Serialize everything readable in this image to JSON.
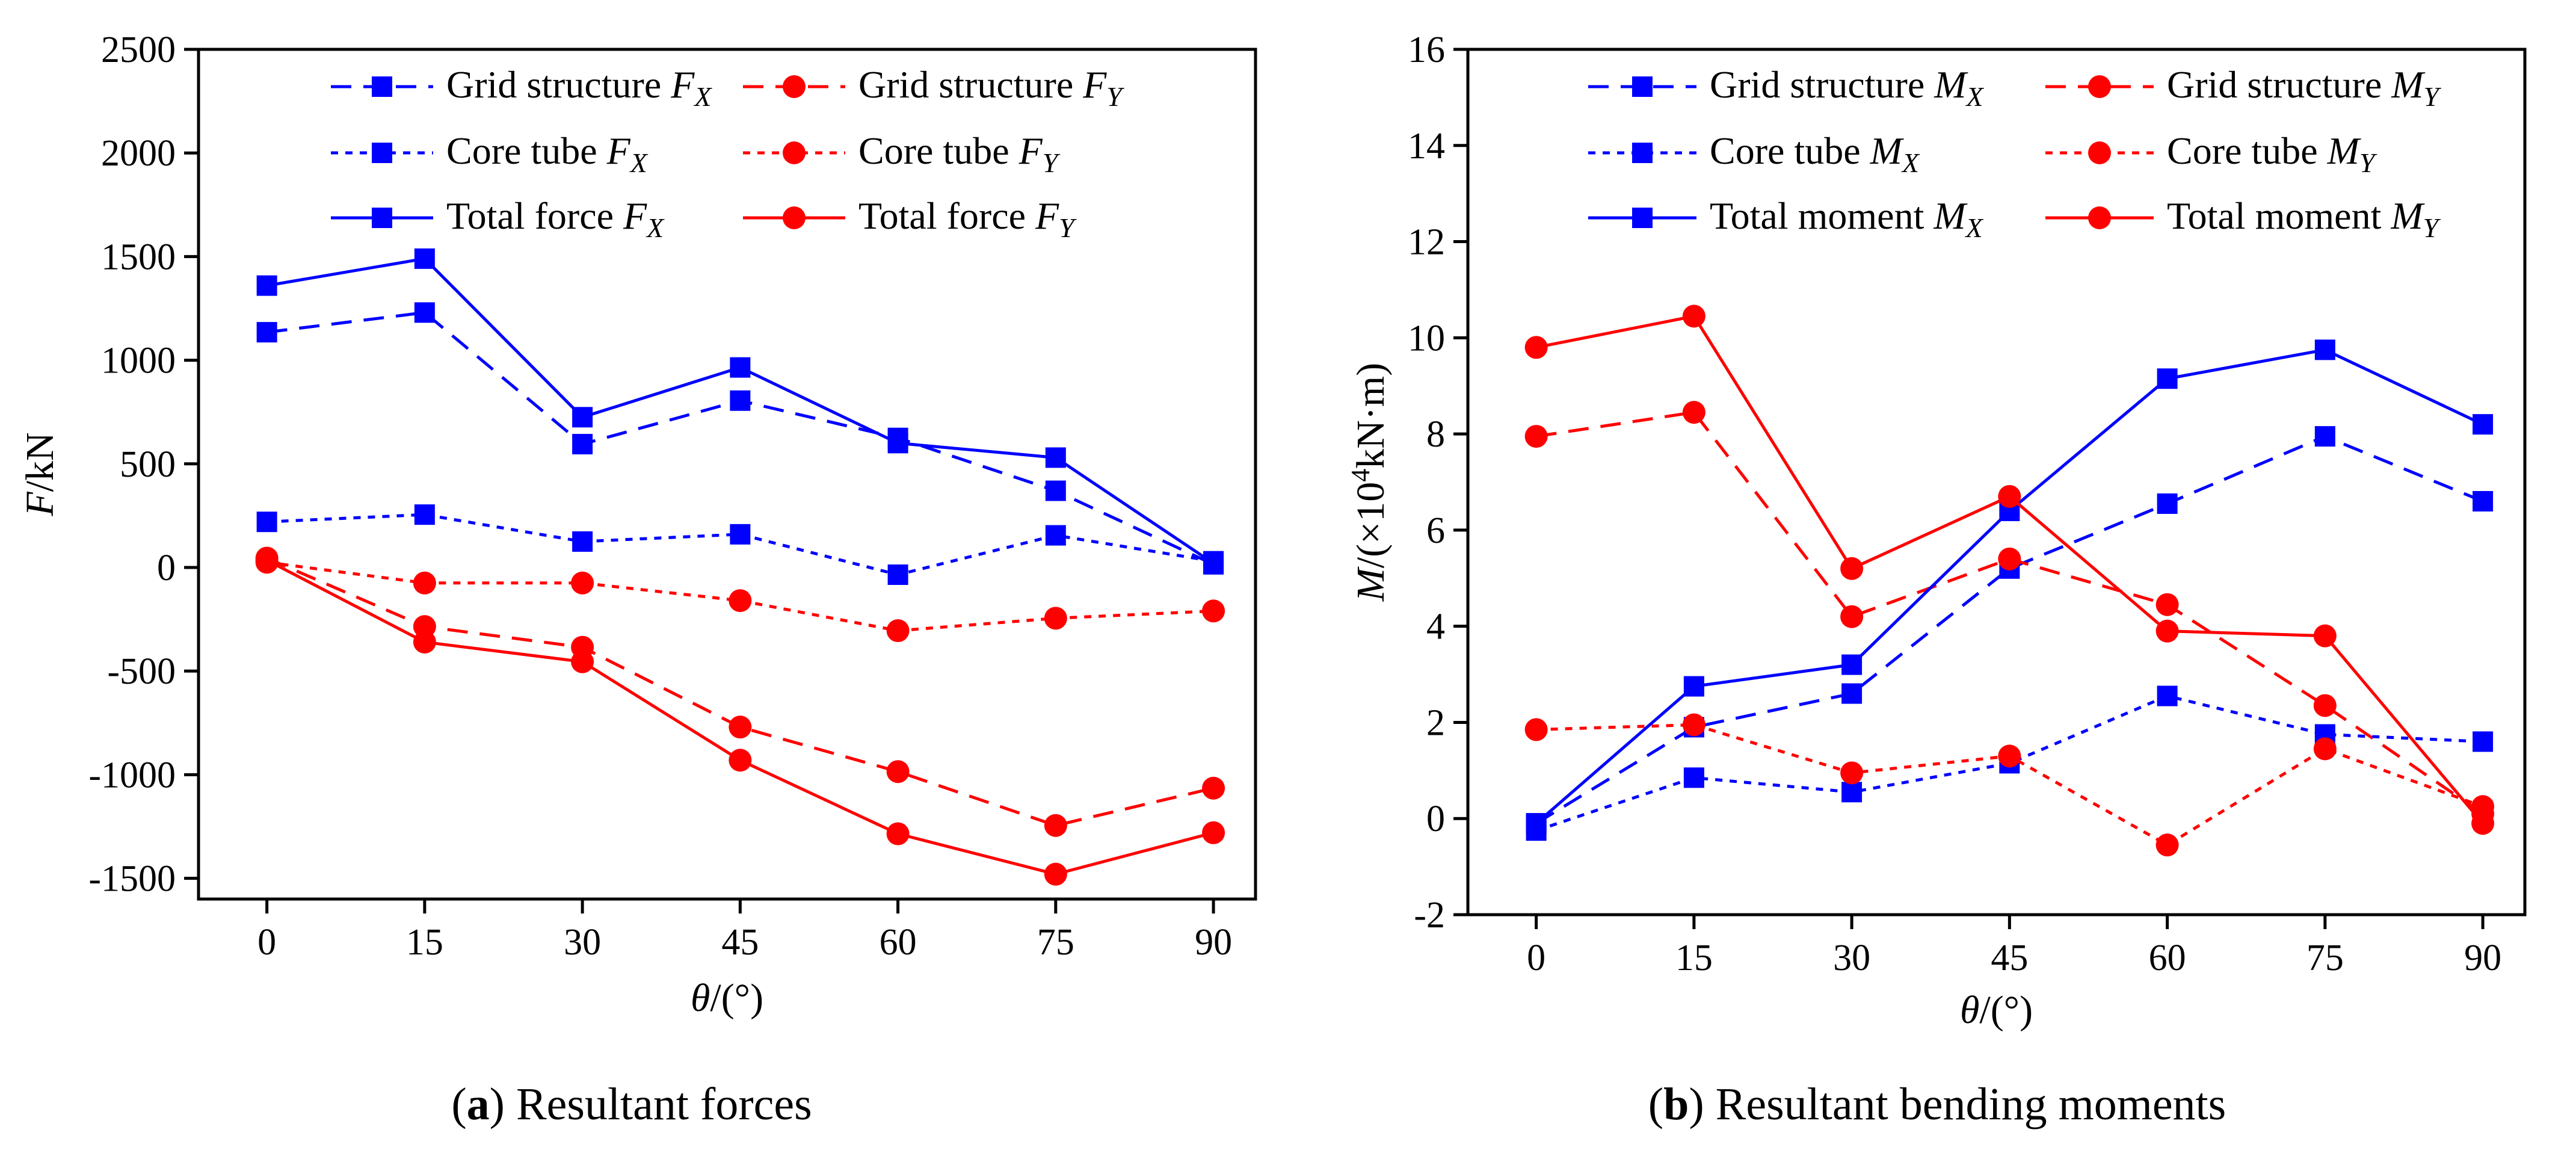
{
  "colors": {
    "blue": "#0000ff",
    "red": "#ff0000",
    "axis": "#000000"
  },
  "captions": [
    {
      "letter": "a",
      "text": " Resultant forces"
    },
    {
      "letter": "b",
      "text": " Resultant bending moments"
    }
  ],
  "chart_data": [
    {
      "type": "line",
      "xlabel": {
        "var": "θ",
        "unit": "/(°)"
      },
      "ylabel": {
        "var": "F",
        "unit": "/kN"
      },
      "x": [
        0,
        15,
        30,
        45,
        60,
        75,
        90
      ],
      "xticks": [
        "0",
        "15",
        "30",
        "45",
        "60",
        "75",
        "90"
      ],
      "yticks": [
        "-1500",
        "-1000",
        "-500",
        "0",
        "500",
        "1000",
        "1500",
        "2000",
        "2500"
      ],
      "xlim": [
        -6.5,
        94
      ],
      "ylim": [
        -1600,
        2500
      ],
      "grid": false,
      "legend_position": "top",
      "series": [
        {
          "name": "Grid structure ",
          "sub": "X",
          "var": "F",
          "color": "#0000ff",
          "dash": "dashed",
          "marker": "square",
          "values": [
            1135,
            1230,
            595,
            805,
            625,
            370,
            15
          ]
        },
        {
          "name": "Grid structure ",
          "sub": "Y",
          "var": "F",
          "color": "#ff0000",
          "dash": "dashed",
          "marker": "circle",
          "values": [
            45,
            -285,
            -385,
            -770,
            -985,
            -1245,
            -1065
          ]
        },
        {
          "name": "Core tube ",
          "sub": "X",
          "var": "F",
          "color": "#0000ff",
          "dash": "dotted",
          "marker": "square",
          "values": [
            220,
            255,
            125,
            160,
            -35,
            155,
            30
          ]
        },
        {
          "name": "Core tube ",
          "sub": "Y",
          "var": "F",
          "color": "#ff0000",
          "dash": "dotted",
          "marker": "circle",
          "values": [
            25,
            -75,
            -75,
            -160,
            -305,
            -245,
            -210
          ]
        },
        {
          "name": "Total force ",
          "sub": "X",
          "var": "F",
          "color": "#0000ff",
          "dash": "solid",
          "marker": "square",
          "values": [
            1360,
            1490,
            725,
            965,
            600,
            530,
            20
          ]
        },
        {
          "name": "Total force ",
          "sub": "Y",
          "var": "F",
          "color": "#ff0000",
          "dash": "solid",
          "marker": "circle",
          "values": [
            35,
            -360,
            -455,
            -930,
            -1285,
            -1480,
            -1280
          ]
        }
      ]
    },
    {
      "type": "line",
      "xlabel": {
        "var": "θ",
        "unit": "/(°)"
      },
      "ylabel": {
        "var": "M",
        "unit_pre": "/(×10",
        "sup": "4",
        "unit_post": "kN·m)"
      },
      "x": [
        0,
        15,
        30,
        45,
        60,
        75,
        90
      ],
      "xticks": [
        "0",
        "15",
        "30",
        "45",
        "60",
        "75",
        "90"
      ],
      "yticks": [
        "-2",
        "0",
        "2",
        "4",
        "6",
        "8",
        "10",
        "12",
        "14",
        "16"
      ],
      "xlim": [
        -6.5,
        94
      ],
      "ylim": [
        -2,
        16
      ],
      "grid": false,
      "legend_position": "top",
      "series": [
        {
          "name": "Grid structure ",
          "sub": "X",
          "var": "M",
          "color": "#0000ff",
          "dash": "dashed",
          "marker": "square",
          "values": [
            -0.1,
            1.9,
            2.6,
            5.2,
            6.55,
            7.95,
            6.6
          ]
        },
        {
          "name": "Grid structure ",
          "sub": "Y",
          "var": "M",
          "color": "#ff0000",
          "dash": "dashed",
          "marker": "circle",
          "values": [
            7.95,
            8.45,
            4.2,
            5.4,
            4.45,
            2.35,
            0.1
          ]
        },
        {
          "name": "Core tube ",
          "sub": "X",
          "var": "M",
          "color": "#0000ff",
          "dash": "dotted",
          "marker": "square",
          "values": [
            -0.25,
            0.85,
            0.55,
            1.15,
            2.55,
            1.75,
            1.6
          ]
        },
        {
          "name": "Core tube ",
          "sub": "Y",
          "var": "M",
          "color": "#ff0000",
          "dash": "dotted",
          "marker": "circle",
          "values": [
            1.85,
            1.95,
            0.95,
            1.3,
            -0.55,
            1.45,
            0.25
          ]
        },
        {
          "name": "Total moment ",
          "sub": "X",
          "var": "M",
          "color": "#0000ff",
          "dash": "solid",
          "marker": "square",
          "values": [
            -0.1,
            2.75,
            3.2,
            6.4,
            9.15,
            9.75,
            8.2
          ]
        },
        {
          "name": "Total moment ",
          "sub": "Y",
          "var": "M",
          "color": "#ff0000",
          "dash": "solid",
          "marker": "circle",
          "values": [
            9.8,
            10.45,
            5.2,
            6.7,
            3.9,
            3.8,
            -0.1
          ]
        }
      ]
    }
  ]
}
